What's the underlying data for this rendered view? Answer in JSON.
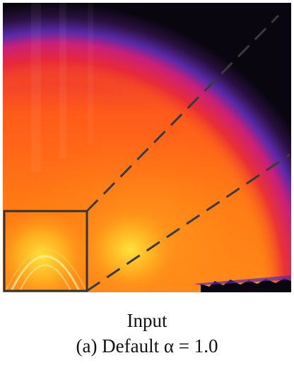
{
  "figure": {
    "caption_main": "Input",
    "caption_sub": "(a) Default α = 1.0"
  },
  "colors": {
    "background_dark": "#0a0610",
    "edge_purple": "#5a2aa8",
    "magenta": "#c8207a",
    "red": "#e8283a",
    "orange": "#ff6a12",
    "yellow_orange": "#ffa21e",
    "yellow": "#ffe23a",
    "inset_border": "#333333",
    "dash_line": "#3a3a3a"
  }
}
